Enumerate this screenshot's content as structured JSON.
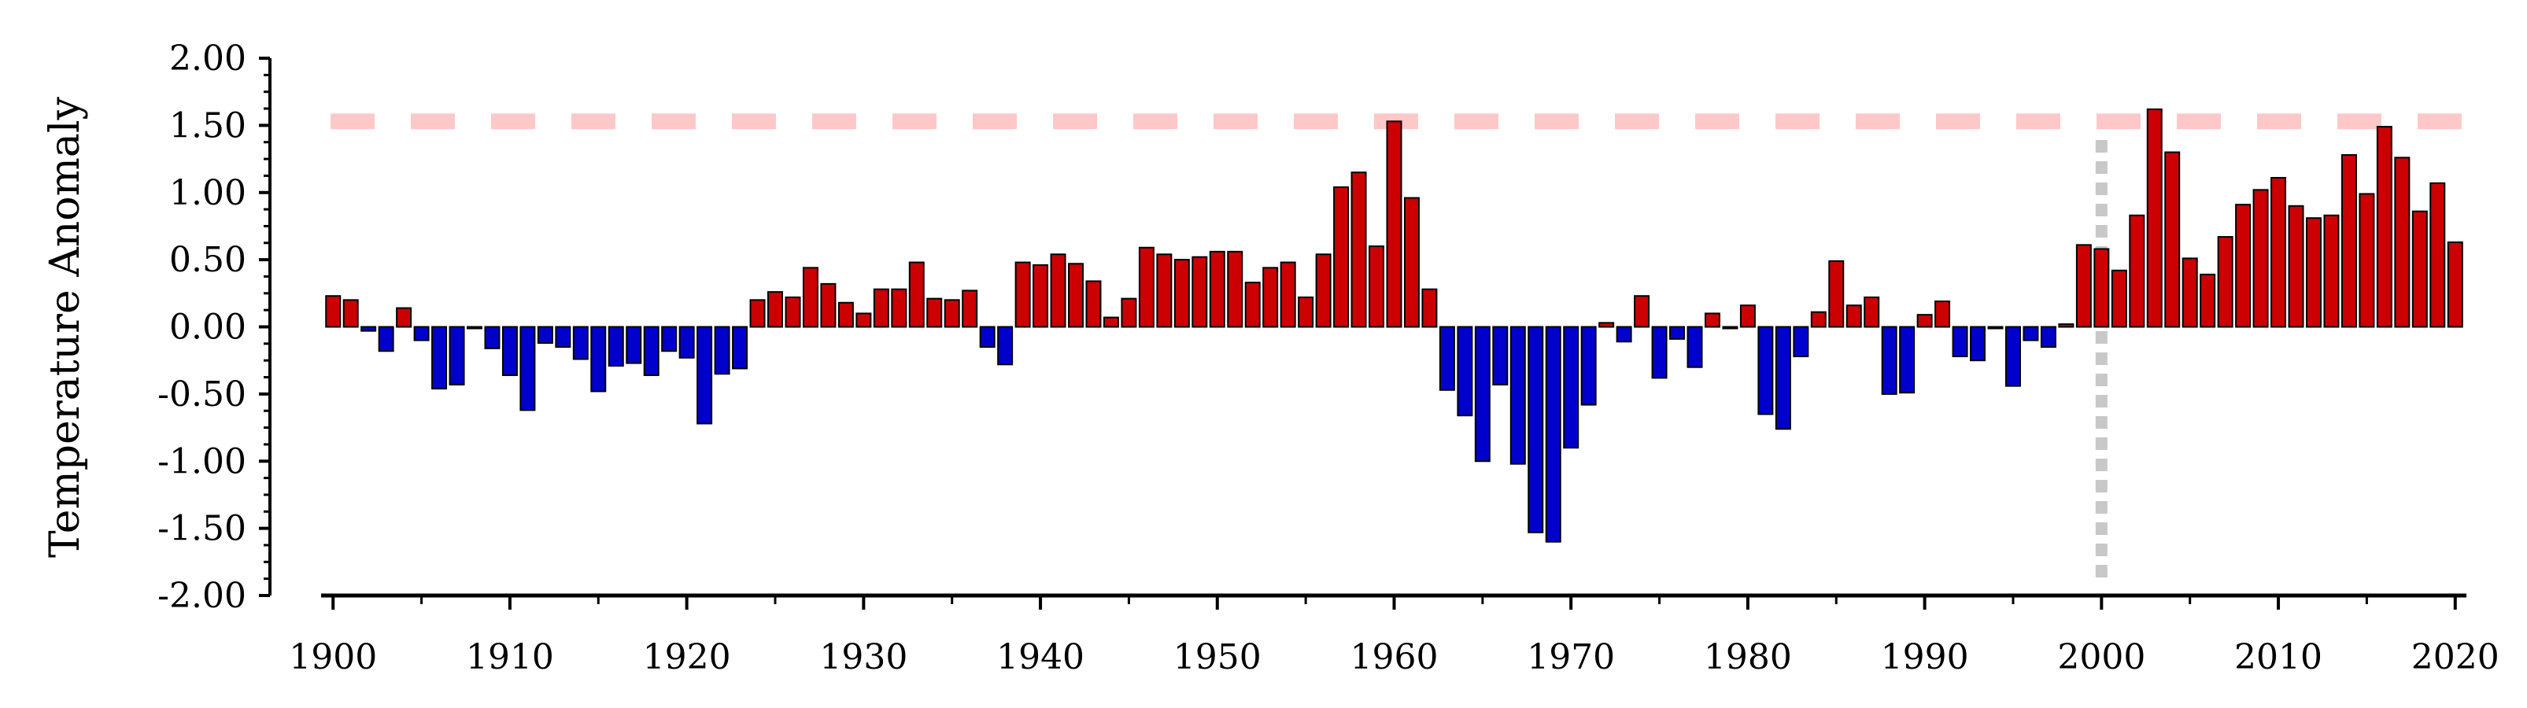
{
  "chart_data": {
    "type": "bar",
    "ylabel": "Temperature Anomaly",
    "xlabel": "",
    "ylim": [
      -2.0,
      2.0
    ],
    "yticks": [
      "-2.00",
      "-1.50",
      "-1.00",
      "-0.50",
      "0.00",
      "0.50",
      "1.00",
      "1.50",
      "2.00"
    ],
    "xticks": [
      "1900",
      "1910",
      "1920",
      "1930",
      "1940",
      "1950",
      "1960",
      "1970",
      "1980",
      "1990",
      "2000",
      "2010",
      "2020"
    ],
    "xlim": [
      1899.5,
      2020.5
    ],
    "years_start": 1900,
    "values": [
      0.23,
      0.2,
      -0.03,
      -0.18,
      0.14,
      -0.1,
      -0.46,
      -0.43,
      -0.01,
      -0.16,
      -0.36,
      -0.62,
      -0.12,
      -0.15,
      -0.24,
      -0.48,
      -0.29,
      -0.27,
      -0.36,
      -0.18,
      -0.23,
      -0.72,
      -0.35,
      -0.31,
      0.2,
      0.26,
      0.22,
      0.44,
      0.32,
      0.18,
      0.1,
      0.28,
      0.28,
      0.48,
      0.21,
      0.2,
      0.27,
      -0.15,
      -0.28,
      0.48,
      0.46,
      0.54,
      0.47,
      0.34,
      0.07,
      0.21,
      0.59,
      0.54,
      0.5,
      0.52,
      0.56,
      0.56,
      0.33,
      0.44,
      0.48,
      0.22,
      0.54,
      1.04,
      1.15,
      0.6,
      1.53,
      0.96,
      0.28,
      -0.47,
      -0.66,
      -1.0,
      -0.43,
      -1.02,
      -1.53,
      -1.6,
      -0.9,
      -0.58,
      0.03,
      -0.11,
      0.23,
      -0.38,
      -0.09,
      -0.3,
      0.1,
      -0.01,
      0.16,
      -0.65,
      -0.76,
      -0.22,
      0.11,
      0.49,
      0.16,
      0.22,
      -0.5,
      -0.49,
      0.09,
      0.19,
      -0.22,
      -0.25,
      -0.01,
      -0.44,
      -0.1,
      -0.15,
      0.02,
      0.61,
      0.58,
      0.42,
      0.83,
      1.62,
      1.3,
      0.51,
      0.39,
      0.67,
      0.91,
      1.02,
      1.11,
      0.9,
      0.81,
      0.83,
      1.28,
      0.99,
      1.49,
      1.26,
      0.86,
      1.07,
      0.63
    ],
    "reference_line": {
      "y": 1.53,
      "style": "dashed",
      "color": "#ffc8c8"
    },
    "marker_line": {
      "x": 2000,
      "style": "dotted",
      "color": "#c8c8c8"
    },
    "colors": {
      "positive": "#cc0000",
      "negative": "#0000cc",
      "outline": "#000000"
    },
    "grid": false,
    "legend": "none"
  }
}
